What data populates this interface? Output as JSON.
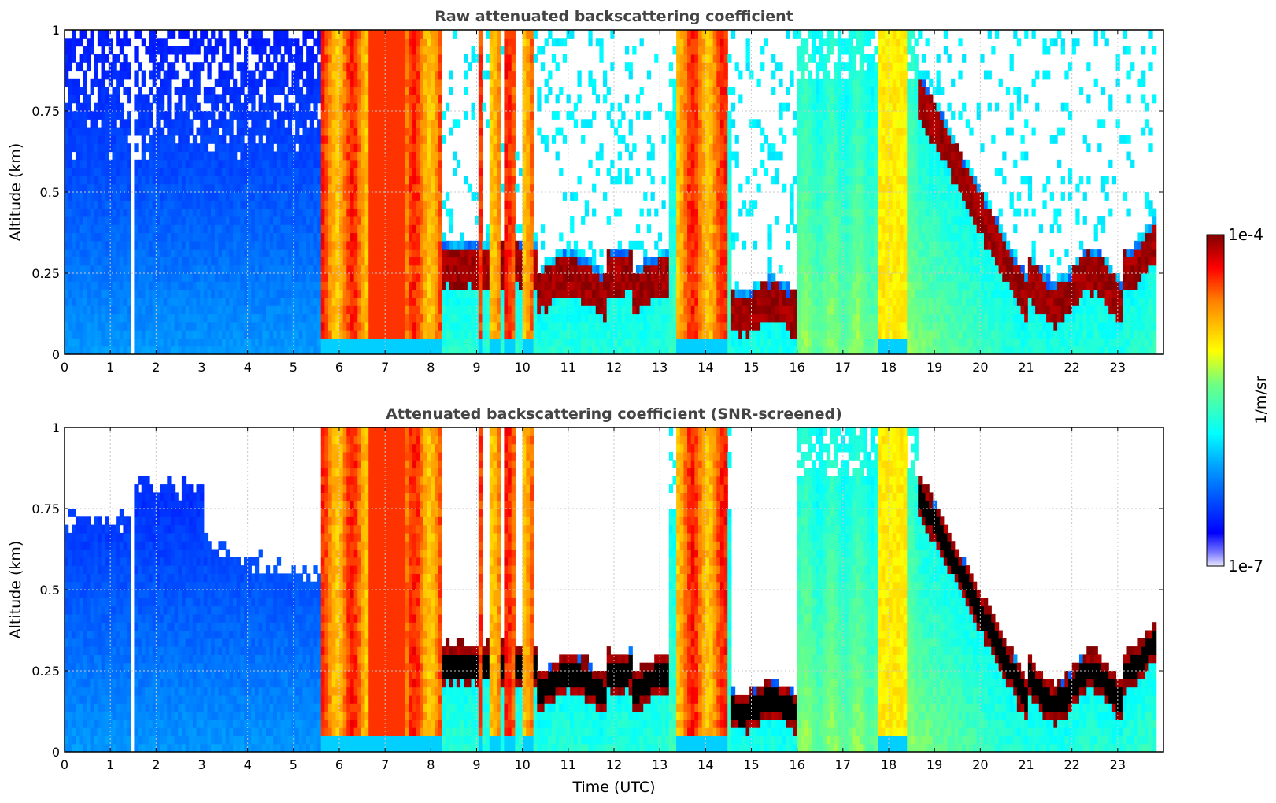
{
  "figure": {
    "colorbar": {
      "label": "1/m/sr",
      "max_label": "1e-4",
      "min_label": "1e-7",
      "scale": "log",
      "range": [
        1e-07,
        0.0001
      ],
      "colormap": "jet"
    },
    "shared_xlabel": "Time (UTC)"
  },
  "chart_data": [
    {
      "type": "heatmap",
      "title": "Raw attenuated backscattering coefficient",
      "xlabel": "",
      "ylabel": "Altitude (km)",
      "xlim": [
        0,
        24
      ],
      "ylim": [
        0,
        1
      ],
      "xticks": [
        "0",
        "1",
        "2",
        "3",
        "4",
        "5",
        "6",
        "7",
        "8",
        "9",
        "10",
        "11",
        "12",
        "13",
        "14",
        "15",
        "16",
        "17",
        "18",
        "19",
        "20",
        "21",
        "22",
        "23"
      ],
      "yticks": [
        "0",
        "0.25",
        "0.5",
        "0.75",
        "1"
      ],
      "grid": true,
      "data_end_hour": 23.8,
      "regimes": [
        {
          "from": 0.0,
          "to": 5.55,
          "description": "blue clear-air signal, noisy above 0.6 km"
        },
        {
          "from": 5.55,
          "to": 8.2,
          "description": "yellow-orange-red full column (precipitation)"
        },
        {
          "from": 8.2,
          "to": 10.3,
          "description": "dark red layer ~0.25 km with orange columns"
        },
        {
          "from": 10.3,
          "to": 13.2,
          "description": "dark red layer 0.15-0.3 km"
        },
        {
          "from": 13.2,
          "to": 14.5,
          "description": "orange-yellow full column"
        },
        {
          "from": 14.5,
          "to": 16.0,
          "description": "dark red layer ~0.1-0.2 km"
        },
        {
          "from": 16.0,
          "to": 18.6,
          "description": "cyan-green columns with yellow"
        },
        {
          "from": 18.6,
          "to": 23.8,
          "description": "dark red descending layer from ~0.8 km to ~0.2 km"
        }
      ]
    },
    {
      "type": "heatmap",
      "title": "Attenuated backscattering coefficient (SNR-screened)",
      "xlabel": "Time (UTC)",
      "ylabel": "Altitude (km)",
      "xlim": [
        0,
        24
      ],
      "ylim": [
        0,
        1
      ],
      "xticks": [
        "0",
        "1",
        "2",
        "3",
        "4",
        "5",
        "6",
        "7",
        "8",
        "9",
        "10",
        "11",
        "12",
        "13",
        "14",
        "15",
        "16",
        "17",
        "18",
        "19",
        "20",
        "21",
        "22",
        "23"
      ],
      "yticks": [
        "0",
        "0.25",
        "0.5",
        "0.75",
        "1"
      ],
      "grid": true,
      "data_end_hour": 23.8,
      "screening": "low-SNR pixels removed (white); saturated layer shown black"
    }
  ]
}
